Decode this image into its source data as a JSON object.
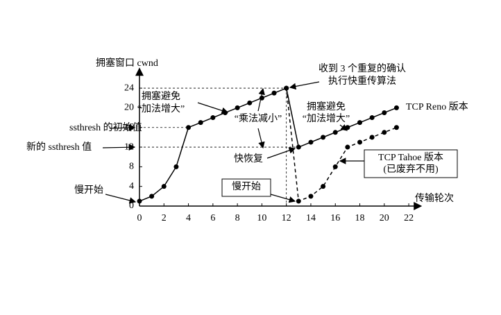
{
  "chart_data": {
    "type": "line",
    "x_label": "传输轮次",
    "y_label": "拥塞窗口 cwnd",
    "xlim": [
      0,
      23
    ],
    "ylim": [
      0,
      28
    ],
    "xticks": [
      0,
      2,
      4,
      6,
      8,
      10,
      12,
      14,
      16,
      18,
      20,
      22
    ],
    "yticks": [
      0,
      4,
      8,
      12,
      16,
      20,
      24
    ],
    "series": [
      {
        "name": "TCP Reno 版本",
        "color": "#000000",
        "dashed": false,
        "x": [
          0,
          1,
          2,
          3,
          4,
          5,
          6,
          7,
          8,
          9,
          10,
          11,
          12,
          13,
          14,
          15,
          16,
          17,
          18,
          19,
          20,
          21
        ],
        "values": [
          1,
          2,
          4,
          8,
          16,
          17,
          18,
          19,
          20,
          21,
          22,
          23,
          24,
          12,
          13,
          14,
          15,
          16,
          17,
          18,
          19,
          20
        ]
      },
      {
        "name": "TCP Tahoe 版本",
        "color": "#000000",
        "dashed": true,
        "x": [
          12,
          13,
          14,
          15,
          16,
          17,
          18,
          19,
          20,
          21
        ],
        "values": [
          24,
          1,
          2,
          4,
          8,
          12,
          13,
          14,
          15,
          16
        ]
      }
    ],
    "annotations": [
      "收到 3 个重复的确认",
      "执行快重传算法",
      "拥塞避免",
      "“加法增大”",
      "拥塞避免",
      "“加法增大”",
      "“乘法减小”",
      "快恢复",
      "(已废弃不用)",
      "慢开始",
      "慢开始",
      "ssthresh 的初始值",
      "新的 ssthresh 值"
    ]
  }
}
